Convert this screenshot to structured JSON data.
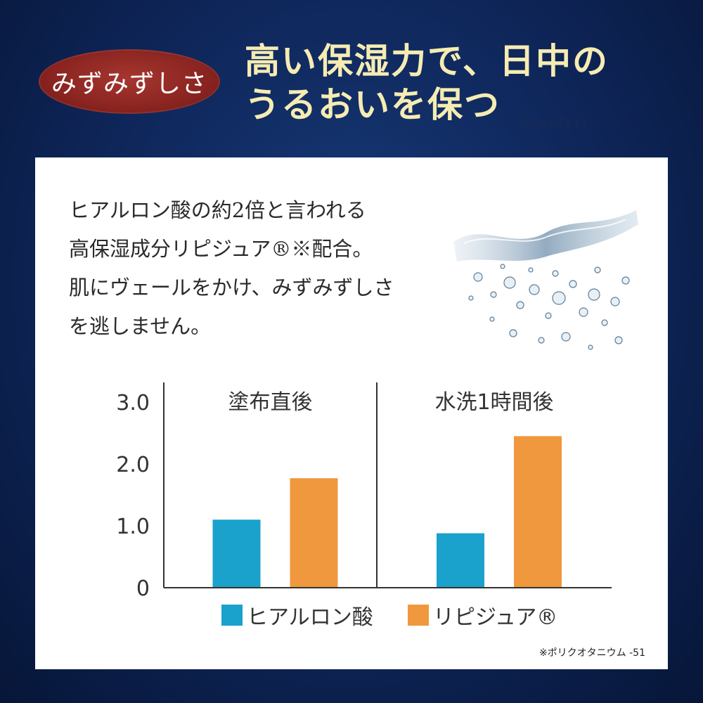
{
  "header": {
    "badge": "みずみずしさ",
    "headline_lines": [
      "高い保湿力で、日中の",
      "うるおいを保つ"
    ],
    "note": "（浸透は角質層まで）"
  },
  "description_lines": [
    "ヒアルロン酸の約2倍と言われる",
    "高保湿成分リピジュア®※配合。",
    "肌にヴェールをかけ、みずみずしさ",
    "を逃しません。"
  ],
  "splash_image": "water-splash",
  "footnote": "※ポリクオタニウム -51",
  "colors": {
    "hyaluronic": "#1aa1cc",
    "lipidure": "#f0983d",
    "text": "#333333"
  },
  "chart_data": {
    "type": "bar",
    "panels": [
      "塗布直後",
      "水洗1時間後"
    ],
    "series": [
      {
        "name": "ヒアルロン酸",
        "values": [
          1.1,
          0.88
        ]
      },
      {
        "name": "リピジュア®",
        "values": [
          1.77,
          2.45
        ]
      }
    ],
    "yticks": [
      "0",
      "1.0",
      "2.0",
      "3.0"
    ],
    "ylim": [
      0,
      3.0
    ],
    "legend": "bottom",
    "grid": false
  }
}
